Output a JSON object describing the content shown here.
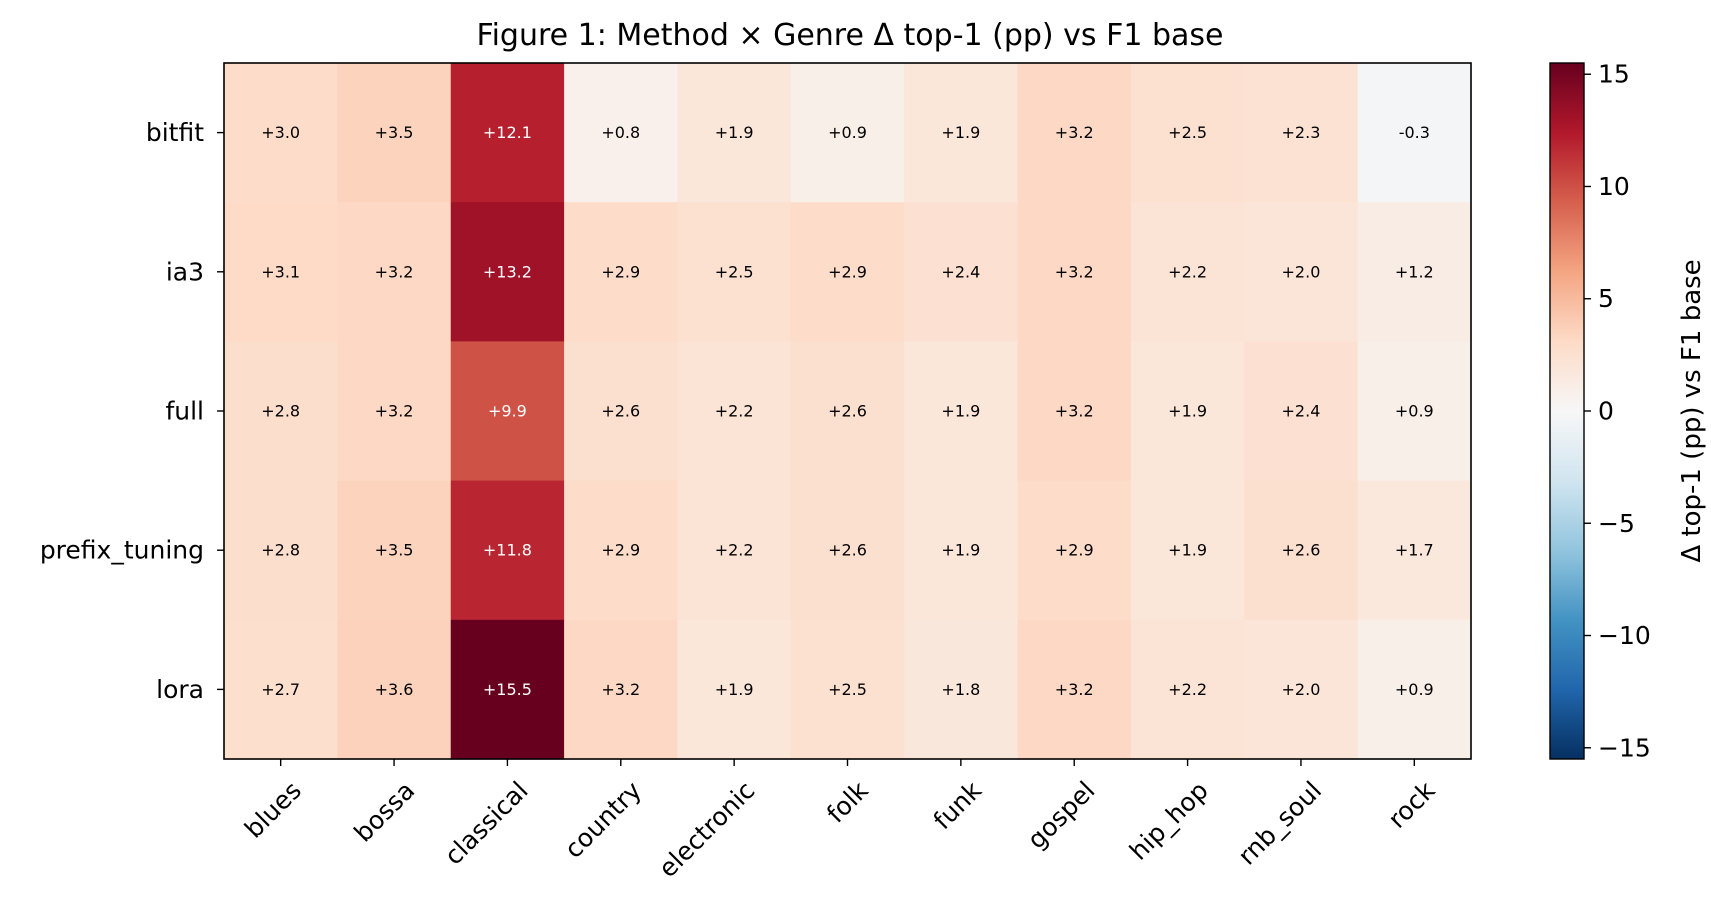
{
  "chart_data": {
    "type": "heatmap",
    "title": "Figure 1: Method × Genre Δ top-1 (pp) vs F1 base",
    "rows": [
      "bitfit",
      "ia3",
      "full",
      "prefix_tuning",
      "lora"
    ],
    "columns": [
      "blues",
      "bossa",
      "classical",
      "country",
      "electronic",
      "folk",
      "funk",
      "gospel",
      "hip_hop",
      "rnb_soul",
      "rock"
    ],
    "values": [
      [
        3.0,
        3.5,
        12.1,
        0.8,
        1.9,
        0.9,
        1.9,
        3.2,
        2.5,
        2.3,
        -0.3
      ],
      [
        3.1,
        3.2,
        13.2,
        2.9,
        2.5,
        2.9,
        2.4,
        3.2,
        2.2,
        2.0,
        1.2
      ],
      [
        2.8,
        3.2,
        9.9,
        2.6,
        2.2,
        2.6,
        1.9,
        3.2,
        1.9,
        2.4,
        0.9
      ],
      [
        2.8,
        3.5,
        11.8,
        2.9,
        2.2,
        2.6,
        1.9,
        2.9,
        1.9,
        2.6,
        1.7
      ],
      [
        2.7,
        3.6,
        15.5,
        3.2,
        1.9,
        2.5,
        1.8,
        3.2,
        2.2,
        2.0,
        0.9
      ]
    ],
    "cell_labels": [
      [
        "+3.0",
        "+3.5",
        "+12.1",
        "+0.8",
        "+1.9",
        "+0.9",
        "+1.9",
        "+3.2",
        "+2.5",
        "+2.3",
        "-0.3"
      ],
      [
        "+3.1",
        "+3.2",
        "+13.2",
        "+2.9",
        "+2.5",
        "+2.9",
        "+2.4",
        "+3.2",
        "+2.2",
        "+2.0",
        "+1.2"
      ],
      [
        "+2.8",
        "+3.2",
        "+9.9",
        "+2.6",
        "+2.2",
        "+2.6",
        "+1.9",
        "+3.2",
        "+1.9",
        "+2.4",
        "+0.9"
      ],
      [
        "+2.8",
        "+3.5",
        "+11.8",
        "+2.9",
        "+2.2",
        "+2.6",
        "+1.9",
        "+2.9",
        "+1.9",
        "+2.6",
        "+1.7"
      ],
      [
        "+2.7",
        "+3.6",
        "+15.5",
        "+3.2",
        "+1.9",
        "+2.5",
        "+1.8",
        "+3.2",
        "+2.2",
        "+2.0",
        "+0.9"
      ]
    ],
    "colormap": "RdBu_r",
    "colormap_stops": [
      "#053061",
      "#2166ac",
      "#4393c3",
      "#92c5de",
      "#d1e5f0",
      "#f7f7f7",
      "#fddbc7",
      "#f4a582",
      "#d6604d",
      "#b2182b",
      "#67001f"
    ],
    "vmin": -15.5,
    "vmax": 15.5,
    "colorbar": {
      "label": "Δ top-1 (pp) vs F1 base",
      "ticks": [
        15,
        10,
        5,
        0,
        -5,
        -10,
        -15
      ],
      "tick_labels": [
        "15",
        "10",
        "5",
        "0",
        "−5",
        "−10",
        "−15"
      ]
    },
    "grid": false,
    "legend": "colorbar-right"
  }
}
